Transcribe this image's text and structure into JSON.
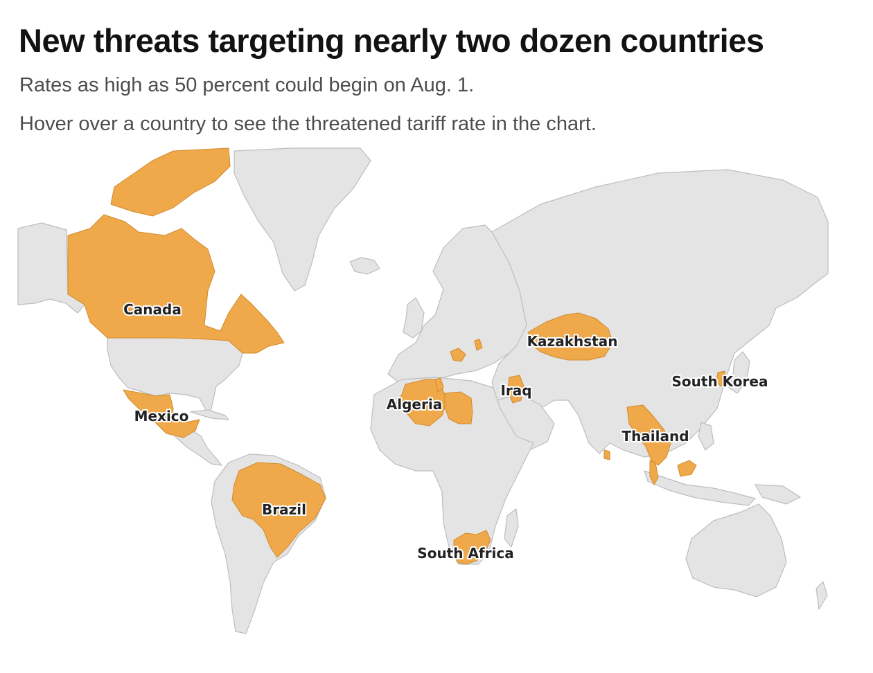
{
  "header": {
    "title": "New threats targeting nearly two dozen countries",
    "subtitle": "Rates as high as 50 percent could begin on Aug. 1.",
    "instruction": "Hover over a country to see the threatened tariff rate in the chart."
  },
  "map": {
    "highlight_color": "#efa94a",
    "base_color": "#e4e4e4",
    "labeled_countries": [
      "Canada",
      "Mexico",
      "Brazil",
      "Algeria",
      "Iraq",
      "Kazakhstan",
      "South Korea",
      "Thailand",
      "South Africa"
    ]
  }
}
